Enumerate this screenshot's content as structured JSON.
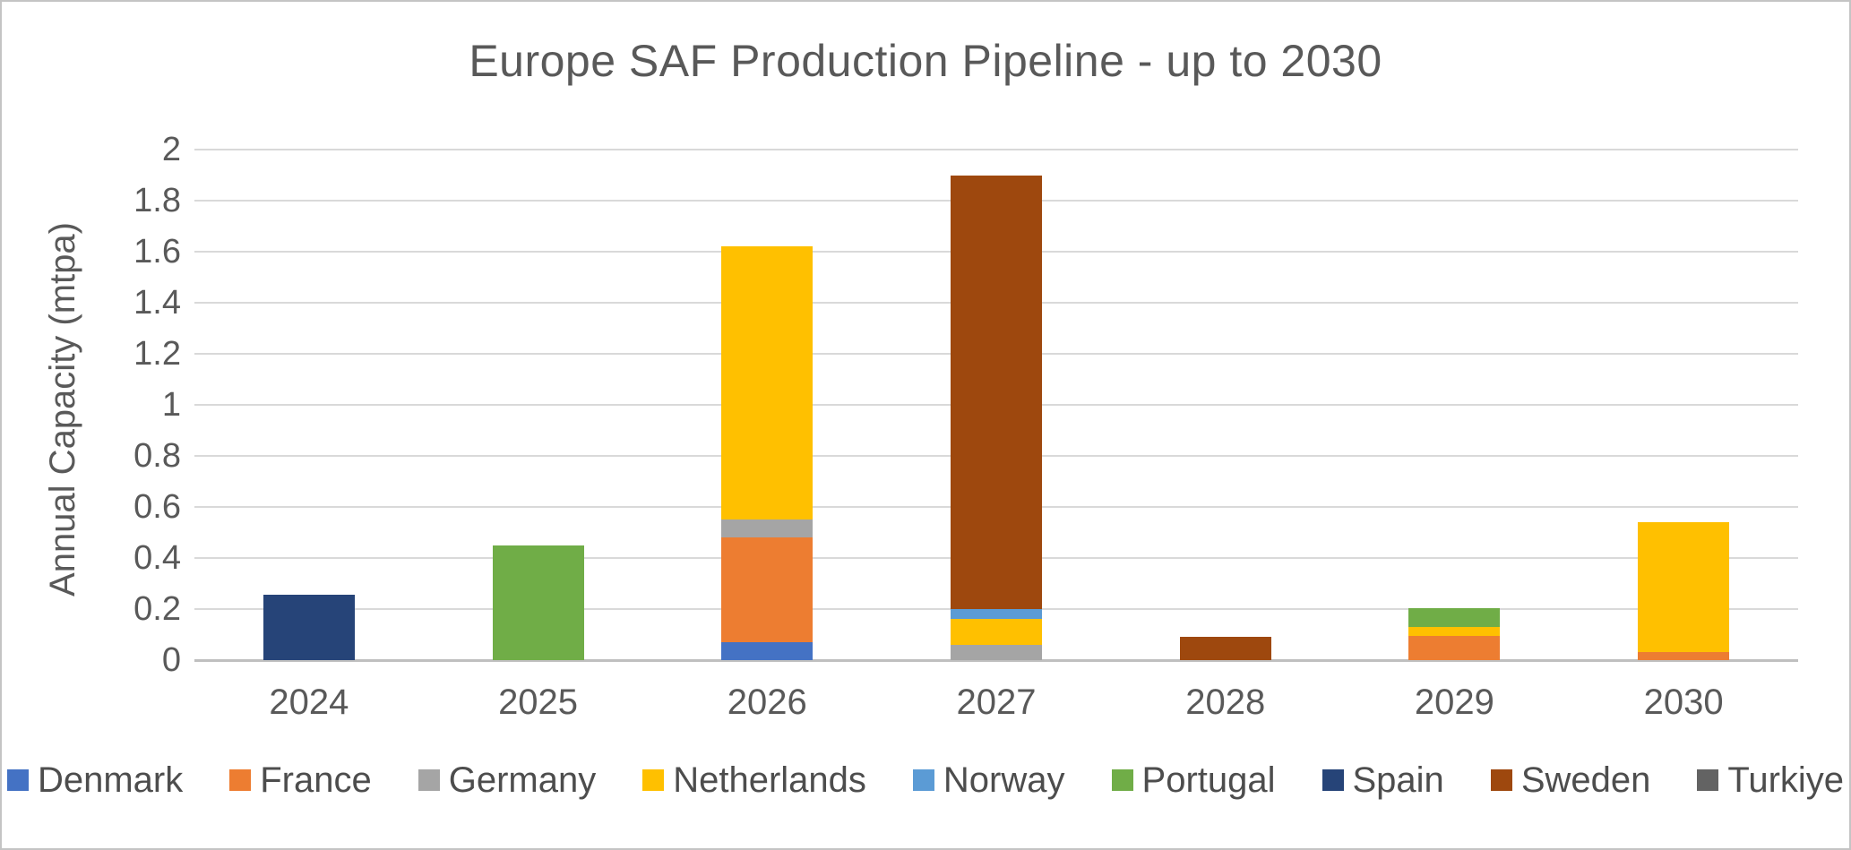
{
  "chart_data": {
    "type": "bar",
    "stacked": true,
    "title": "Europe SAF Production Pipeline - up to 2030",
    "xlabel": "",
    "ylabel": "Annual Capacity (mtpa)",
    "ylim": [
      0,
      2
    ],
    "ytick_step": 0.2,
    "ytick_labels": [
      "0",
      "0.2",
      "0.4",
      "0.6",
      "0.8",
      "1",
      "1.2",
      "1.4",
      "1.6",
      "1.8",
      "2"
    ],
    "grid": true,
    "legend_position": "bottom",
    "categories": [
      "2024",
      "2025",
      "2026",
      "2027",
      "2028",
      "2029",
      "2030"
    ],
    "series": [
      {
        "name": "Denmark",
        "color": "#4472C4",
        "values": [
          0,
          0,
          0.07,
          0,
          0,
          0,
          0
        ]
      },
      {
        "name": "France",
        "color": "#ED7D31",
        "values": [
          0,
          0,
          0.41,
          0,
          0,
          0.095,
          0.03
        ]
      },
      {
        "name": "Germany",
        "color": "#A5A5A5",
        "values": [
          0,
          0,
          0.07,
          0.06,
          0,
          0,
          0
        ]
      },
      {
        "name": "Netherlands",
        "color": "#FFC000",
        "values": [
          0,
          0,
          1.07,
          0.1,
          0,
          0.035,
          0.51
        ]
      },
      {
        "name": "Norway",
        "color": "#5B9BD5",
        "values": [
          0,
          0,
          0,
          0.04,
          0,
          0,
          0
        ]
      },
      {
        "name": "Portugal",
        "color": "#70AD47",
        "values": [
          0,
          0.45,
          0,
          0,
          0,
          0.075,
          0
        ]
      },
      {
        "name": "Spain",
        "color": "#264478",
        "values": [
          0.255,
          0,
          0,
          0,
          0,
          0,
          0
        ]
      },
      {
        "name": "Sweden",
        "color": "#9E480E",
        "values": [
          0,
          0,
          0,
          1.7,
          0.09,
          0,
          0
        ]
      },
      {
        "name": "Turkiye",
        "color": "#636363",
        "values": [
          0,
          0,
          0,
          0,
          0,
          0,
          0
        ]
      }
    ],
    "totals_by_category": [
      0.255,
      0.45,
      1.62,
      1.9,
      0.09,
      0.205,
      0.54
    ]
  },
  "colors": {
    "text": "#595959",
    "gridline": "#D9D9D9",
    "axis_line": "#BFBFBF",
    "frame_border": "#C4C4C4",
    "background": "#FFFFFF"
  }
}
